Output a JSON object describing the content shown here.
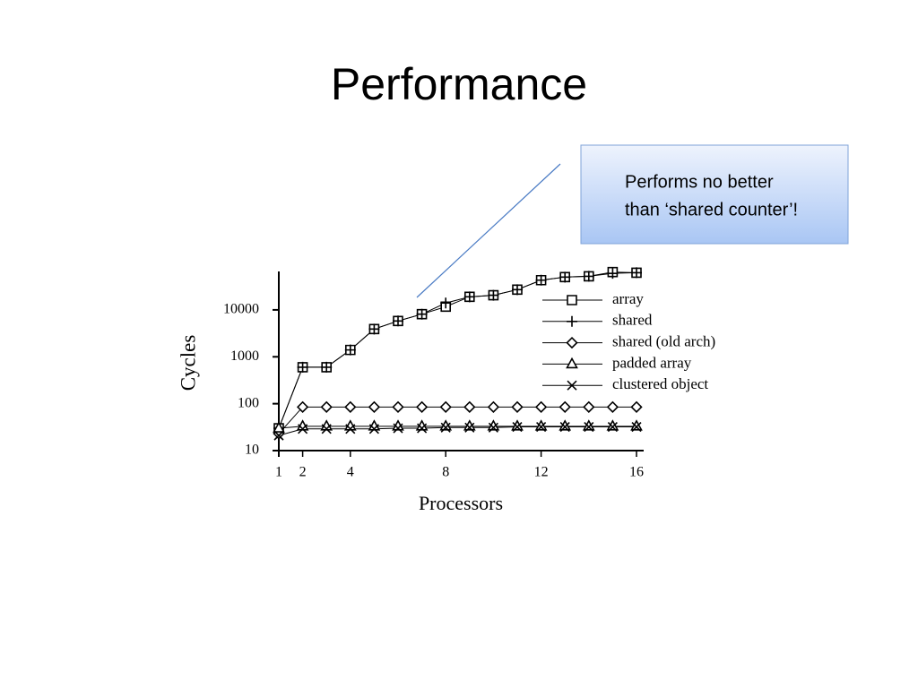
{
  "slide_title": "Performance",
  "callout": {
    "lines": [
      "Performs no better",
      "than ‘shared counter’!"
    ]
  },
  "chart_data": {
    "type": "line",
    "x_label": "Processors",
    "y_label": "Cycles",
    "x": [
      1,
      2,
      3,
      4,
      5,
      6,
      7,
      8,
      9,
      10,
      11,
      12,
      13,
      14,
      15,
      16
    ],
    "xlim": [
      1,
      16
    ],
    "xticks": [
      1,
      2,
      4,
      8,
      12,
      16
    ],
    "ylim": [
      10,
      66000
    ],
    "yticks": [
      10,
      100,
      1000,
      10000
    ],
    "log_y": true,
    "legend": "center right",
    "color": "#000000",
    "series": [
      {
        "name": "array",
        "marker": "square",
        "values": [
          30,
          600,
          600,
          1400,
          3900,
          5800,
          8100,
          11700,
          19000,
          20500,
          27000,
          43000,
          50000,
          52000,
          64000,
          62000
        ]
      },
      {
        "name": "shared",
        "marker": "plus",
        "values": [
          30,
          600,
          600,
          1400,
          3900,
          5800,
          8100,
          14000,
          19000,
          20500,
          27000,
          43000,
          50000,
          52000,
          60000,
          62000
        ]
      },
      {
        "name": "shared (old arch)",
        "marker": "diamond",
        "values": [
          23,
          85,
          85,
          85,
          85,
          85,
          85,
          85,
          85,
          85,
          85,
          85,
          85,
          85,
          85,
          85
        ]
      },
      {
        "name": "padded array",
        "marker": "triangle",
        "values": [
          30,
          33,
          33,
          33,
          33,
          33,
          33,
          33,
          33,
          33,
          33,
          33,
          33,
          33,
          33,
          33
        ]
      },
      {
        "name": "clustered object",
        "marker": "x",
        "values": [
          21,
          29,
          29,
          29,
          29,
          30,
          30,
          31,
          31,
          31,
          32,
          32,
          32,
          32,
          32,
          32
        ]
      }
    ]
  }
}
